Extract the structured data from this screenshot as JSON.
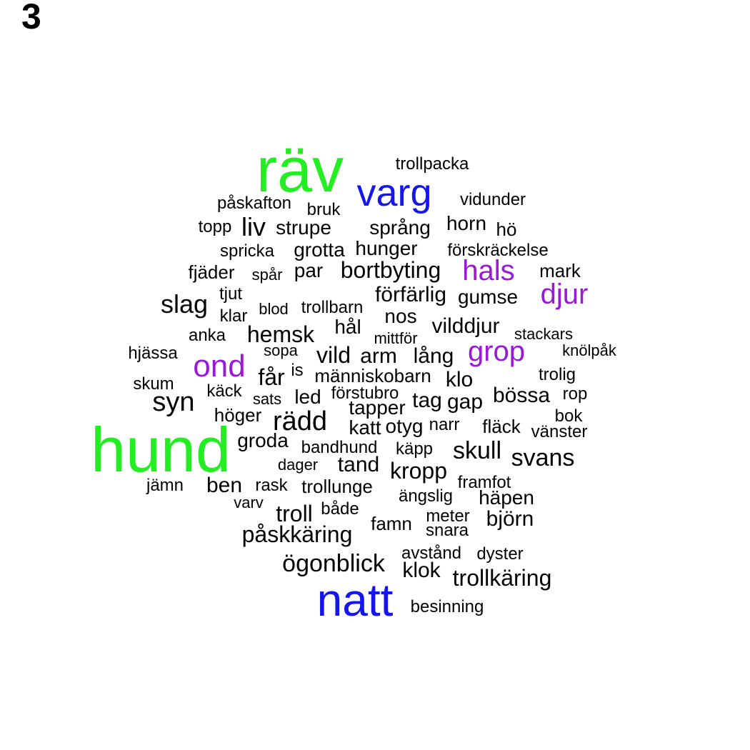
{
  "panel_label": "3",
  "colors": {
    "green": "#22ee22",
    "blue": "#1515ee",
    "purple": "#9a18d8",
    "black": "#000000"
  },
  "chart_data": {
    "type": "wordcloud",
    "words": [
      {
        "text": "hund",
        "color": "green"
      },
      {
        "text": "räv",
        "color": "green"
      },
      {
        "text": "natt",
        "color": "blue"
      },
      {
        "text": "varg",
        "color": "blue"
      },
      {
        "text": "ond",
        "color": "purple"
      },
      {
        "text": "hals",
        "color": "purple"
      },
      {
        "text": "djur",
        "color": "purple"
      },
      {
        "text": "grop",
        "color": "purple"
      },
      {
        "text": "trollpacka",
        "color": "black"
      },
      {
        "text": "vidunder",
        "color": "black"
      },
      {
        "text": "påskafton",
        "color": "black"
      },
      {
        "text": "bruk",
        "color": "black"
      },
      {
        "text": "topp",
        "color": "black"
      },
      {
        "text": "liv",
        "color": "black"
      },
      {
        "text": "strupe",
        "color": "black"
      },
      {
        "text": "språng",
        "color": "black"
      },
      {
        "text": "horn",
        "color": "black"
      },
      {
        "text": "hö",
        "color": "black"
      },
      {
        "text": "spricka",
        "color": "black"
      },
      {
        "text": "grotta",
        "color": "black"
      },
      {
        "text": "hunger",
        "color": "black"
      },
      {
        "text": "förskräckelse",
        "color": "black"
      },
      {
        "text": "fjäder",
        "color": "black"
      },
      {
        "text": "spår",
        "color": "black"
      },
      {
        "text": "par",
        "color": "black"
      },
      {
        "text": "bortbyting",
        "color": "black"
      },
      {
        "text": "mark",
        "color": "black"
      },
      {
        "text": "tjut",
        "color": "black"
      },
      {
        "text": "förfärlig",
        "color": "black"
      },
      {
        "text": "gumse",
        "color": "black"
      },
      {
        "text": "slag",
        "color": "black"
      },
      {
        "text": "klar",
        "color": "black"
      },
      {
        "text": "blod",
        "color": "black"
      },
      {
        "text": "trollbarn",
        "color": "black"
      },
      {
        "text": "nos",
        "color": "black"
      },
      {
        "text": "anka",
        "color": "black"
      },
      {
        "text": "hemsk",
        "color": "black"
      },
      {
        "text": "hål",
        "color": "black"
      },
      {
        "text": "mittför",
        "color": "black"
      },
      {
        "text": "vilddjur",
        "color": "black"
      },
      {
        "text": "stackars",
        "color": "black"
      },
      {
        "text": "hjässa",
        "color": "black"
      },
      {
        "text": "sopa",
        "color": "black"
      },
      {
        "text": "vild",
        "color": "black"
      },
      {
        "text": "arm",
        "color": "black"
      },
      {
        "text": "lång",
        "color": "black"
      },
      {
        "text": "knölpåk",
        "color": "black"
      },
      {
        "text": "får",
        "color": "black"
      },
      {
        "text": "is",
        "color": "black"
      },
      {
        "text": "människobarn",
        "color": "black"
      },
      {
        "text": "klo",
        "color": "black"
      },
      {
        "text": "trolig",
        "color": "black"
      },
      {
        "text": "skum",
        "color": "black"
      },
      {
        "text": "käck",
        "color": "black"
      },
      {
        "text": "syn",
        "color": "black"
      },
      {
        "text": "sats",
        "color": "black"
      },
      {
        "text": "led",
        "color": "black"
      },
      {
        "text": "förstubro",
        "color": "black"
      },
      {
        "text": "tag",
        "color": "black"
      },
      {
        "text": "gap",
        "color": "black"
      },
      {
        "text": "bössa",
        "color": "black"
      },
      {
        "text": "rop",
        "color": "black"
      },
      {
        "text": "tapper",
        "color": "black"
      },
      {
        "text": "höger",
        "color": "black"
      },
      {
        "text": "rädd",
        "color": "black"
      },
      {
        "text": "bok",
        "color": "black"
      },
      {
        "text": "katt",
        "color": "black"
      },
      {
        "text": "otyg",
        "color": "black"
      },
      {
        "text": "narr",
        "color": "black"
      },
      {
        "text": "fläck",
        "color": "black"
      },
      {
        "text": "vänster",
        "color": "black"
      },
      {
        "text": "groda",
        "color": "black"
      },
      {
        "text": "bandhund",
        "color": "black"
      },
      {
        "text": "käpp",
        "color": "black"
      },
      {
        "text": "skull",
        "color": "black"
      },
      {
        "text": "svans",
        "color": "black"
      },
      {
        "text": "dager",
        "color": "black"
      },
      {
        "text": "tand",
        "color": "black"
      },
      {
        "text": "kropp",
        "color": "black"
      },
      {
        "text": "jämn",
        "color": "black"
      },
      {
        "text": "ben",
        "color": "black"
      },
      {
        "text": "rask",
        "color": "black"
      },
      {
        "text": "trollunge",
        "color": "black"
      },
      {
        "text": "framfot",
        "color": "black"
      },
      {
        "text": "varv",
        "color": "black"
      },
      {
        "text": "ängslig",
        "color": "black"
      },
      {
        "text": "häpen",
        "color": "black"
      },
      {
        "text": "troll",
        "color": "black"
      },
      {
        "text": "både",
        "color": "black"
      },
      {
        "text": "meter",
        "color": "black"
      },
      {
        "text": "björn",
        "color": "black"
      },
      {
        "text": "famn",
        "color": "black"
      },
      {
        "text": "snara",
        "color": "black"
      },
      {
        "text": "påskkäring",
        "color": "black"
      },
      {
        "text": "avstånd",
        "color": "black"
      },
      {
        "text": "dyster",
        "color": "black"
      },
      {
        "text": "ögonblick",
        "color": "black"
      },
      {
        "text": "klok",
        "color": "black"
      },
      {
        "text": "trollkäring",
        "color": "black"
      },
      {
        "text": "besinning",
        "color": "black"
      }
    ]
  }
}
